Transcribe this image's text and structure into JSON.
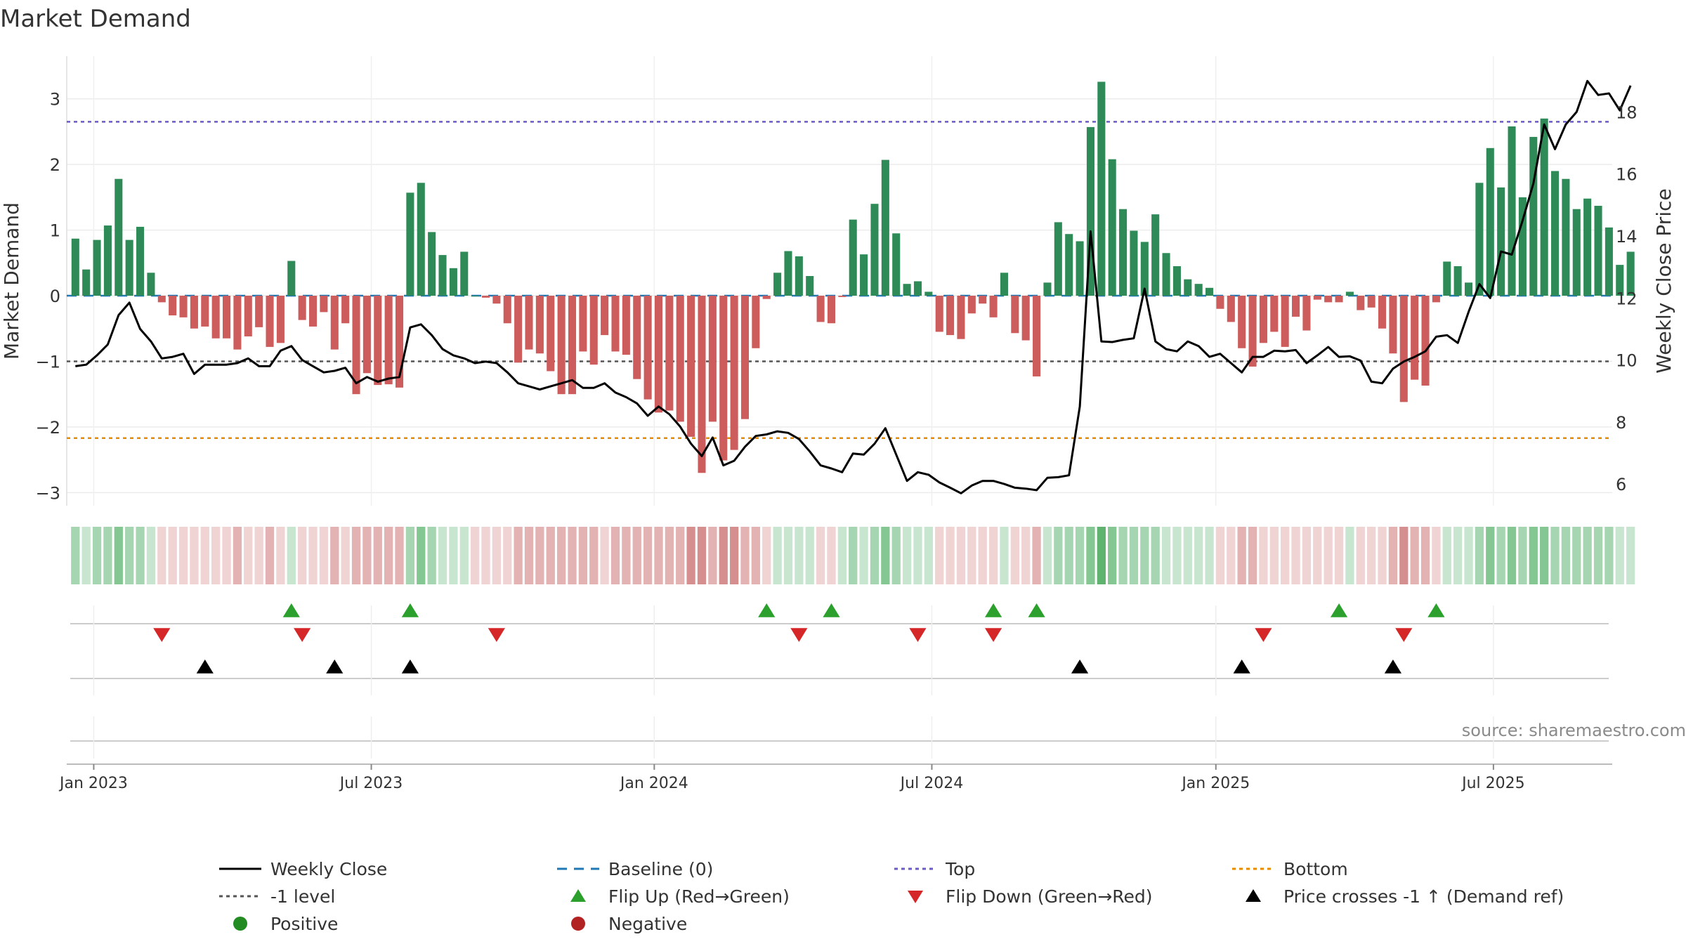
{
  "title": "Market Demand",
  "source": "source: sharemaestro.com",
  "chart_data": {
    "type": "bar",
    "title": "Market Demand",
    "ylabel": "Market Demand",
    "ylabel_right": "Weekly Close Price",
    "ylim": [
      -3.2,
      3.65
    ],
    "ylim_right": [
      5.3,
      19.8
    ],
    "yticks": [
      -3,
      -2,
      -1,
      0,
      1,
      2,
      3
    ],
    "ytick_labels": [
      "−3",
      "−2",
      "−1",
      "0",
      "1",
      "2",
      "3"
    ],
    "yticks_right": [
      6,
      8,
      10,
      12,
      14,
      16,
      18
    ],
    "ytick_labels_right": [
      "6",
      "8",
      "10",
      "12",
      "14",
      "16",
      "18"
    ],
    "x_start": "2022-12-26",
    "x_step_weeks": 1,
    "x_range_weeks": [
      -0.8,
      142.3
    ],
    "xticks": [
      {
        "week": 1.7,
        "label": "Jan 2023"
      },
      {
        "week": 27.4,
        "label": "Jul 2023"
      },
      {
        "week": 53.6,
        "label": "Jan 2024"
      },
      {
        "week": 79.3,
        "label": "Jul 2024"
      },
      {
        "week": 105.6,
        "label": "Jan 2025"
      },
      {
        "week": 131.3,
        "label": "Jul 2025"
      }
    ],
    "reference_lines": {
      "baseline": 0,
      "top": 2.65,
      "minus_one": -1,
      "bottom": -2.17
    },
    "colors": {
      "positive": "#2e8b57",
      "negative": "#cd5c5c",
      "close": "#000000",
      "baseline": "#1f77b4",
      "top": "#6a5acd",
      "minus_one": "#555555",
      "bottom": "#e68a00",
      "flip_up": "#2ca02c",
      "flip_down": "#d62728",
      "cross": "#000000",
      "positive_dot": "#228b22",
      "negative_dot": "#b22222"
    },
    "series": [
      {
        "name": "Market Demand",
        "values": [
          0.87,
          0.4,
          0.85,
          1.07,
          1.78,
          0.85,
          1.05,
          0.35,
          -0.1,
          -0.3,
          -0.33,
          -0.5,
          -0.47,
          -0.65,
          -0.65,
          -0.82,
          -0.62,
          -0.48,
          -0.78,
          -0.72,
          0.53,
          -0.37,
          -0.47,
          -0.25,
          -0.82,
          -0.42,
          -1.5,
          -1.18,
          -1.36,
          -1.35,
          -1.4,
          1.57,
          1.72,
          0.97,
          0.62,
          0.42,
          0.67,
          0.0,
          -0.03,
          -0.12,
          -0.42,
          -1.02,
          -0.82,
          -0.88,
          -1.15,
          -1.5,
          -1.5,
          -0.85,
          -1.05,
          -0.6,
          -0.85,
          -0.9,
          -1.27,
          -1.58,
          -1.78,
          -1.75,
          -1.92,
          -2.15,
          -2.7,
          -1.92,
          -2.51,
          -2.35,
          -1.88,
          -0.8,
          -0.05,
          0.35,
          0.68,
          0.6,
          0.3,
          -0.4,
          -0.42,
          -0.02,
          1.16,
          0.63,
          1.4,
          2.07,
          0.95,
          0.18,
          0.22,
          0.06,
          -0.55,
          -0.6,
          -0.66,
          -0.27,
          -0.12,
          -0.33,
          0.35,
          -0.57,
          -0.68,
          -1.23,
          0.2,
          1.12,
          0.94,
          0.83,
          2.57,
          3.26,
          2.08,
          1.32,
          0.99,
          0.82,
          1.24,
          0.65,
          0.45,
          0.25,
          0.18,
          0.12,
          -0.2,
          -0.4,
          -0.8,
          -1.08,
          -0.72,
          -0.55,
          -0.78,
          -0.32,
          -0.53,
          -0.06,
          -0.1,
          -0.1,
          0.06,
          -0.22,
          -0.18,
          -0.5,
          -0.88,
          -1.62,
          -1.28,
          -1.37,
          -0.1,
          0.52,
          0.45,
          0.2,
          1.72,
          2.25,
          1.65,
          2.58,
          1.5,
          2.42,
          2.7,
          1.9,
          1.78,
          1.32,
          1.48,
          1.37,
          1.04,
          0.47,
          0.67
        ]
      },
      {
        "name": "Weekly Close",
        "values": [
          9.8,
          9.85,
          10.15,
          10.5,
          11.45,
          11.85,
          11.0,
          10.6,
          10.05,
          10.1,
          10.2,
          9.55,
          9.85,
          9.85,
          9.85,
          9.9,
          10.05,
          9.8,
          9.8,
          10.3,
          10.45,
          10.0,
          9.8,
          9.6,
          9.65,
          9.75,
          9.25,
          9.45,
          9.3,
          9.4,
          9.45,
          11.05,
          11.15,
          10.8,
          10.35,
          10.15,
          10.05,
          9.9,
          9.95,
          9.9,
          9.6,
          9.25,
          9.15,
          9.05,
          9.15,
          9.25,
          9.35,
          9.1,
          9.1,
          9.25,
          8.95,
          8.8,
          8.6,
          8.2,
          8.5,
          8.25,
          7.85,
          7.3,
          6.9,
          7.5,
          6.6,
          6.75,
          7.2,
          7.55,
          7.6,
          7.7,
          7.65,
          7.45,
          7.05,
          6.6,
          6.5,
          6.38,
          6.98,
          6.95,
          7.3,
          7.8,
          6.95,
          6.1,
          6.38,
          6.3,
          6.05,
          5.88,
          5.7,
          5.95,
          6.1,
          6.1,
          6.0,
          5.88,
          5.85,
          5.8,
          6.2,
          6.22,
          6.28,
          8.5,
          14.15,
          10.6,
          10.58,
          10.65,
          10.7,
          12.3,
          10.6,
          10.35,
          10.28,
          10.6,
          10.45,
          10.1,
          10.2,
          9.9,
          9.6,
          10.1,
          10.1,
          10.3,
          10.28,
          10.32,
          9.9,
          10.15,
          10.42,
          10.1,
          10.12,
          9.98,
          9.3,
          9.25,
          9.72,
          9.95,
          10.1,
          10.28,
          10.75,
          10.8,
          10.55,
          11.55,
          12.45,
          12.0,
          13.5,
          13.4,
          14.5,
          15.7,
          17.6,
          16.8,
          17.6,
          18.0,
          19.0,
          18.55,
          18.6,
          18.05,
          18.85
        ]
      }
    ],
    "demand_strip": {
      "levels": [
        2,
        1,
        2,
        2,
        3,
        2,
        2,
        1,
        -1,
        -1,
        -1,
        -1,
        -1,
        -1,
        -1,
        -2,
        -1,
        -1,
        -2,
        -1,
        1,
        -1,
        -1,
        -1,
        -2,
        -1,
        -2,
        -2,
        -2,
        -2,
        -2,
        2,
        3,
        2,
        1,
        1,
        1,
        -1,
        -1,
        -1,
        -1,
        -2,
        -2,
        -2,
        -2,
        -2,
        -2,
        -2,
        -2,
        -1,
        -2,
        -2,
        -2,
        -2,
        -2,
        -2,
        -2,
        -3,
        -3,
        -2,
        -3,
        -3,
        -2,
        -2,
        -1,
        1,
        1,
        1,
        1,
        -1,
        -1,
        1,
        2,
        1,
        2,
        3,
        2,
        1,
        1,
        1,
        -1,
        -1,
        -1,
        -1,
        -1,
        -1,
        1,
        -1,
        -1,
        -2,
        1,
        2,
        2,
        2,
        3,
        4,
        3,
        2,
        2,
        2,
        2,
        1,
        1,
        1,
        1,
        1,
        -1,
        -1,
        -2,
        -2,
        -1,
        -1,
        -1,
        -1,
        -1,
        -1,
        -1,
        -1,
        1,
        -1,
        -1,
        -1,
        -2,
        -3,
        -2,
        -2,
        -1,
        1,
        1,
        1,
        2,
        3,
        2,
        3,
        2,
        3,
        3,
        2,
        2,
        2,
        2,
        2,
        2,
        1,
        1
      ]
    },
    "events": {
      "flip_up": [
        20,
        31,
        64,
        70,
        85,
        89,
        117,
        126
      ],
      "flip_down": [
        8,
        21,
        39,
        67,
        78,
        85,
        110,
        123
      ],
      "price_cross_up": [
        12,
        24,
        31,
        93,
        108,
        122
      ]
    }
  },
  "legend": [
    {
      "key": "close",
      "label": "Weekly Close"
    },
    {
      "key": "baseline",
      "label": "Baseline (0)"
    },
    {
      "key": "top",
      "label": "Top"
    },
    {
      "key": "bottom",
      "label": "Bottom"
    },
    {
      "key": "minus_one",
      "label": "-1 level"
    },
    {
      "key": "flip_up",
      "label": "Flip Up (Red→Green)"
    },
    {
      "key": "flip_down",
      "label": "Flip Down (Green→Red)"
    },
    {
      "key": "cross",
      "label": "Price crosses -1 ↑ (Demand ref)"
    },
    {
      "key": "positive_dot",
      "label": "Positive"
    },
    {
      "key": "negative_dot",
      "label": "Negative"
    }
  ]
}
